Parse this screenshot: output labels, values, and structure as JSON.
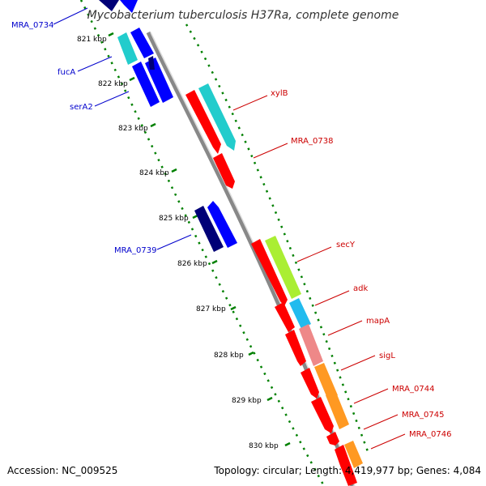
{
  "title": "Mycobacterium tuberculosis H37Ra, complete genome",
  "footer": {
    "accession": "Accession: NC_009525",
    "summary": "Topology: circular; Length: 4,419,977 bp; Genes: 4,084"
  },
  "kbp_ticks": [
    "821 kbp",
    "822 kbp",
    "823 kbp",
    "824 kbp",
    "825 kbp",
    "826 kbp",
    "827 kbp",
    "828 kbp",
    "829 kbp",
    "830 kbp"
  ],
  "genes": [
    {
      "name": "MRA_0734",
      "color": "#0000cc"
    },
    {
      "name": "fucA",
      "color": "#0000cc"
    },
    {
      "name": "serA2",
      "color": "#0000cc"
    },
    {
      "name": "MRA_0739",
      "color": "#0000cc"
    },
    {
      "name": "xylB",
      "color": "#cc0000"
    },
    {
      "name": "MRA_0738",
      "color": "#cc0000"
    },
    {
      "name": "secY",
      "color": "#cc0000"
    },
    {
      "name": "adk",
      "color": "#cc0000"
    },
    {
      "name": "mapA",
      "color": "#cc0000"
    },
    {
      "name": "sigL",
      "color": "#cc0000"
    },
    {
      "name": "MRA_0744",
      "color": "#cc0000"
    },
    {
      "name": "MRA_0745",
      "color": "#cc0000"
    },
    {
      "name": "MRA_0746",
      "color": "#cc0000"
    }
  ],
  "colors": {
    "backbone": "#888888",
    "tick_dots": "#008000",
    "forward": "#ff0000",
    "reverse": "#0000ff",
    "teal": "#22cccc",
    "lime": "#aaee33",
    "cyan": "#22bbee",
    "pink": "#ee8888",
    "orange": "#ff9922",
    "navy": "#000077"
  }
}
